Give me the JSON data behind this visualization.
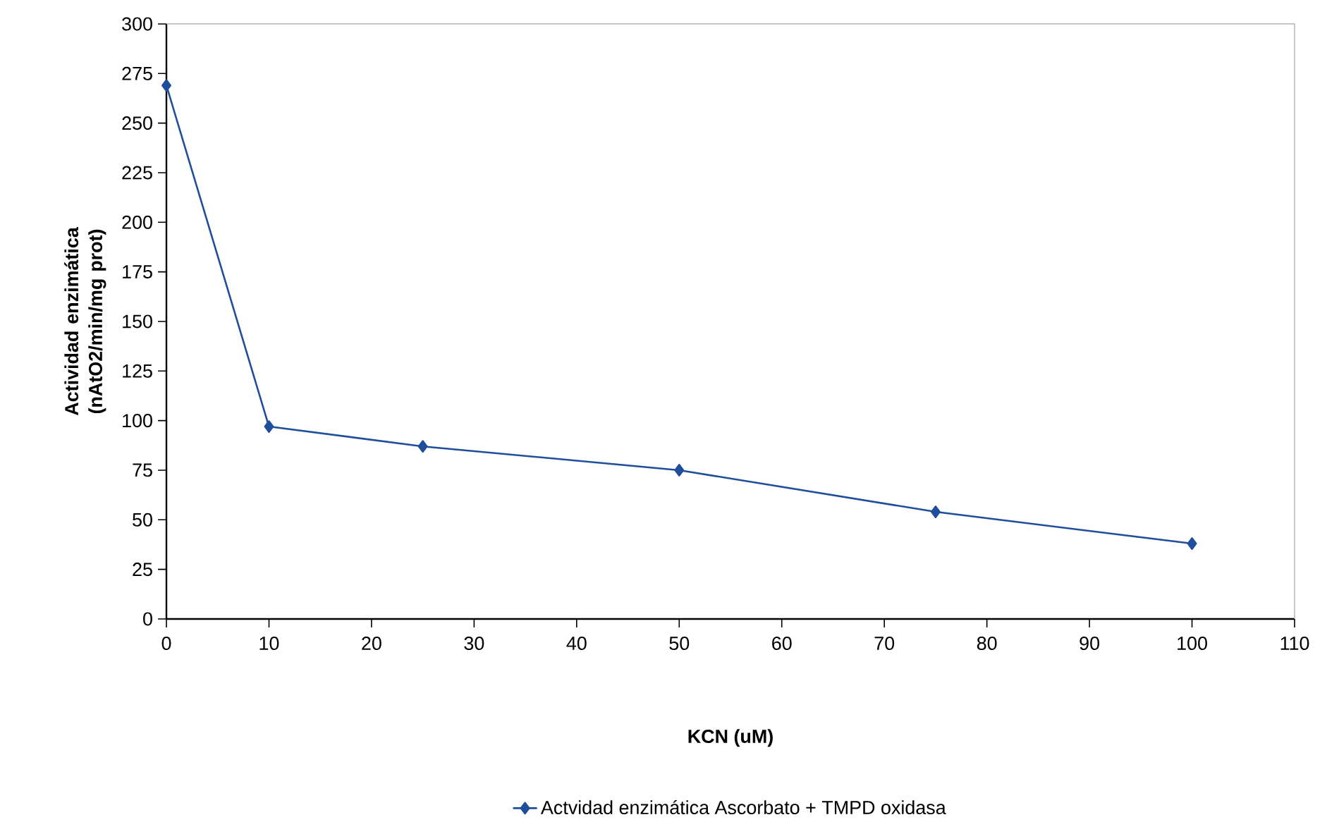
{
  "chart_data": {
    "type": "line",
    "xlabel": "KCN (uM)",
    "ylabel": "Actividad enzimática (nAtO2/min/mg prot)",
    "x": [
      0,
      10,
      25,
      50,
      75,
      100
    ],
    "series": [
      {
        "name": "Actvidad enzimática Ascorbato + TMPD oxidasa",
        "color": "#1f4e9c",
        "values": [
          269,
          97,
          87,
          75,
          54,
          38
        ]
      }
    ],
    "xlim": [
      0,
      110
    ],
    "xticks": [
      0,
      10,
      20,
      30,
      40,
      50,
      60,
      70,
      80,
      90,
      100,
      110
    ],
    "ylim": [
      0,
      300
    ],
    "yticks": [
      0,
      25,
      50,
      75,
      100,
      125,
      150,
      175,
      200,
      225,
      250,
      275,
      300
    ],
    "grid": false,
    "legend": "bottom",
    "marker": "diamond",
    "line_style": "solid"
  }
}
